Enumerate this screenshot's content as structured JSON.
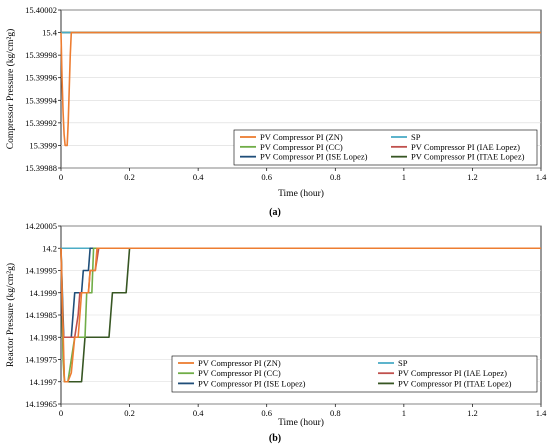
{
  "chart_data": [
    {
      "type": "line",
      "caption": "(a)",
      "xlabel": "Time (hour)",
      "ylabel": "Compressor Pressure (kg/cm²g)",
      "xlim": [
        0,
        1.4
      ],
      "ylim": [
        15.39988,
        15.40002
      ],
      "xticks": [
        0,
        0.2,
        0.4,
        0.6,
        0.8,
        1,
        1.2,
        1.4
      ],
      "xtick_labels": [
        "0",
        "0.2",
        "0.4",
        "0.6",
        "0.8",
        "1",
        "1.2",
        "1.4"
      ],
      "yticks": [
        15.39988,
        15.3999,
        15.39992,
        15.39994,
        15.39996,
        15.39998,
        15.4,
        15.40002
      ],
      "ytick_labels": [
        "15.39988",
        "15.3999",
        "15.39992",
        "15.39994",
        "15.39996",
        "15.39998",
        "15.4",
        "15.40002"
      ],
      "legend_position": "bottom-right",
      "series": [
        {
          "name": "PV Compressor PI (ZN)",
          "color": "#ED7D31",
          "x": [
            0,
            0.003,
            0.006,
            0.009,
            0.012,
            0.015,
            0.018,
            0.021,
            0.024,
            0.027,
            0.03,
            0.035,
            1.4
          ],
          "y": [
            15.4,
            15.39996,
            15.39993,
            15.39991,
            15.3999,
            15.3999,
            15.3999,
            15.39992,
            15.39995,
            15.39998,
            15.4,
            15.4,
            15.4
          ]
        },
        {
          "name": "SP",
          "color": "#4BACC6",
          "x": [
            0,
            1.4
          ],
          "y": [
            15.4,
            15.4
          ]
        },
        {
          "name": "PV Compressor PI (CC)",
          "color": "#70AD47",
          "x": [
            0,
            1.4
          ],
          "y": [
            15.4,
            15.4
          ]
        },
        {
          "name": "PV Compressor PI (IAE Lopez)",
          "color": "#C0504D",
          "x": [
            0,
            1.4
          ],
          "y": [
            15.4,
            15.4
          ]
        },
        {
          "name": "PV Compressor PI (ISE Lopez)",
          "color": "#1F4E79",
          "x": [
            0,
            1.4
          ],
          "y": [
            15.4,
            15.4
          ]
        },
        {
          "name": "PV Compressor PI (ITAE Lopez)",
          "color": "#375623",
          "x": [
            0,
            1.4
          ],
          "y": [
            15.4,
            15.4
          ]
        }
      ]
    },
    {
      "type": "line",
      "caption": "(b)",
      "xlabel": "Time (hour)",
      "ylabel": "Reactor Pressure (kg/cm²g)",
      "xlim": [
        0,
        1.4
      ],
      "ylim": [
        14.19965,
        14.20005
      ],
      "xticks": [
        0,
        0.2,
        0.4,
        0.6,
        0.8,
        1,
        1.2,
        1.4
      ],
      "xtick_labels": [
        "0",
        "0.2",
        "0.4",
        "0.6",
        "0.8",
        "1",
        "1.2",
        "1.4"
      ],
      "yticks": [
        14.19965,
        14.1997,
        14.19975,
        14.1998,
        14.19985,
        14.1999,
        14.19995,
        14.2,
        14.20005
      ],
      "ytick_labels": [
        "14.19965",
        "14.1997",
        "14.19975",
        "14.1998",
        "14.19985",
        "14.1999",
        "14.19995",
        "14.2",
        "14.20005"
      ],
      "legend_position": "bottom-right",
      "series": [
        {
          "name": "PV Compressor PI (ZN)",
          "color": "#ED7D31",
          "x": [
            0,
            0.005,
            0.01,
            0.02,
            0.03,
            0.04,
            0.045,
            0.05,
            0.055,
            0.06,
            0.07,
            0.08,
            0.085,
            0.09,
            0.1,
            0.105,
            0.11,
            1.4
          ],
          "y": [
            14.2,
            14.19985,
            14.1997,
            14.1997,
            14.19972,
            14.1998,
            14.1998,
            14.1998,
            14.19985,
            14.1999,
            14.1999,
            14.1999,
            14.19995,
            14.19995,
            14.19995,
            14.2,
            14.2,
            14.2
          ]
        },
        {
          "name": "SP",
          "color": "#4BACC6",
          "x": [
            0,
            1.4
          ],
          "y": [
            14.2,
            14.2
          ]
        },
        {
          "name": "PV Compressor PI (CC)",
          "color": "#70AD47",
          "x": [
            0,
            0.003,
            0.006,
            0.01,
            0.02,
            0.03,
            0.04,
            0.05,
            0.06,
            0.07,
            0.075,
            0.08,
            0.09,
            0.095,
            0.1,
            0.11,
            0.115,
            0.12,
            1.4
          ],
          "y": [
            14.2,
            14.1999,
            14.19975,
            14.1997,
            14.1997,
            14.19975,
            14.1998,
            14.1998,
            14.1998,
            14.1998,
            14.1999,
            14.1999,
            14.1999,
            14.2,
            14.2,
            14.2,
            14.2,
            14.2,
            14.2
          ]
        },
        {
          "name": "PV Compressor PI (IAE Lopez)",
          "color": "#C0504D",
          "x": [
            0,
            0.004,
            0.008,
            0.02,
            0.03,
            0.04,
            0.05,
            0.055,
            0.06,
            0.07,
            0.08,
            0.085,
            0.09,
            0.1,
            0.11,
            0.115,
            1.4
          ],
          "y": [
            14.2,
            14.19985,
            14.1998,
            14.1998,
            14.1998,
            14.1998,
            14.19985,
            14.1999,
            14.1999,
            14.1999,
            14.1999,
            14.19995,
            14.19995,
            14.19995,
            14.2,
            14.2,
            14.2
          ]
        },
        {
          "name": "PV Compressor PI (ISE Lopez)",
          "color": "#1F4E79",
          "x": [
            0,
            0.004,
            0.008,
            0.02,
            0.03,
            0.035,
            0.04,
            0.05,
            0.06,
            0.065,
            0.07,
            0.08,
            0.085,
            0.09,
            1.4
          ],
          "y": [
            14.2,
            14.1999,
            14.1998,
            14.1998,
            14.1998,
            14.19985,
            14.1999,
            14.1999,
            14.1999,
            14.19995,
            14.19995,
            14.19995,
            14.2,
            14.2,
            14.2
          ]
        },
        {
          "name": "PV Compressor PI (ITAE Lopez)",
          "color": "#375623",
          "x": [
            0,
            0.005,
            0.01,
            0.02,
            0.05,
            0.06,
            0.065,
            0.07,
            0.13,
            0.14,
            0.145,
            0.15,
            0.18,
            0.19,
            0.195,
            0.2,
            1.4
          ],
          "y": [
            14.2,
            14.1998,
            14.1997,
            14.1997,
            14.1997,
            14.1997,
            14.19975,
            14.1998,
            14.1998,
            14.1998,
            14.19985,
            14.1999,
            14.1999,
            14.1999,
            14.19995,
            14.2,
            14.2
          ]
        }
      ]
    }
  ]
}
